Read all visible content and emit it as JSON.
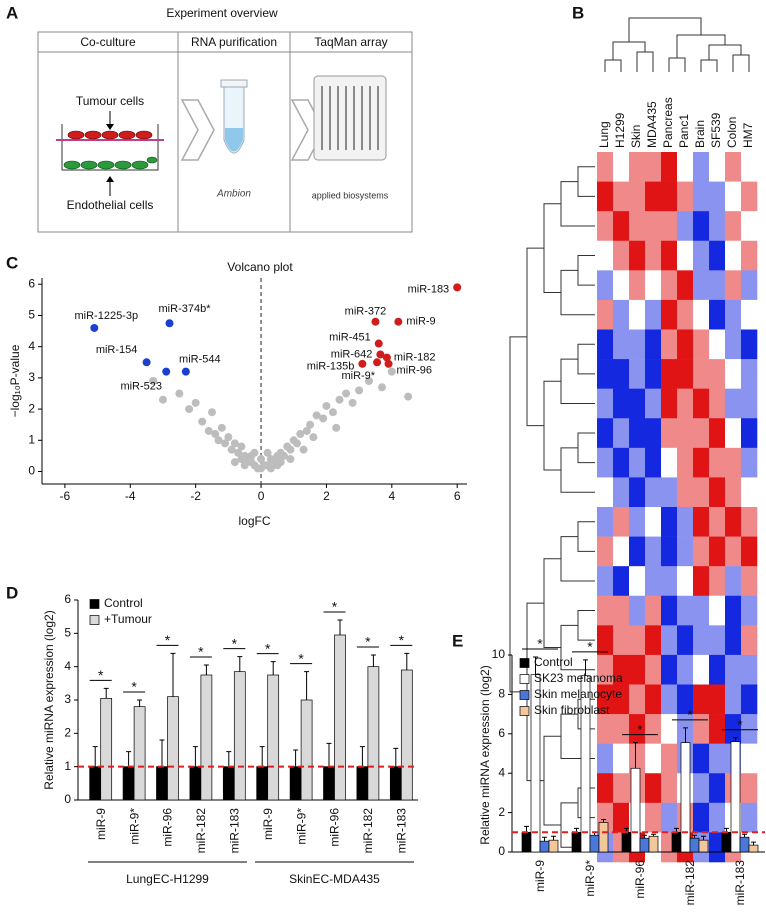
{
  "panel_labels": [
    "A",
    "B",
    "C",
    "D",
    "E"
  ],
  "overview": {
    "title": "Experiment overview",
    "steps": [
      "Co-culture",
      "RNA purification",
      "TaqMan array"
    ],
    "tumour_label": "Tumour cells",
    "endothelial_label": "Endothelial cells",
    "logo_1": "Ambion",
    "logo_2": "applied biosystems"
  },
  "chart_data": [
    {
      "type": "heatmap",
      "columns": [
        "Lung",
        "H1299",
        "Skin",
        "MDA435",
        "Pancreas",
        "Panc1",
        "Brain",
        "SF539",
        "Colon",
        "HM7"
      ],
      "vlim": [
        -2,
        2
      ],
      "colors": {
        "low": "#1428e0",
        "mid": "#ffffff",
        "high": "#e01414"
      },
      "values": [
        [
          1,
          0,
          1,
          1,
          2,
          0,
          -1,
          0,
          1,
          0
        ],
        [
          2,
          1,
          1,
          2,
          2,
          1,
          -1,
          -1,
          0,
          1
        ],
        [
          1,
          2,
          1,
          1,
          1,
          -1,
          -2,
          -1,
          1,
          0
        ],
        [
          0,
          1,
          2,
          1,
          2,
          0,
          -1,
          -2,
          0,
          1
        ],
        [
          -1,
          0,
          1,
          0,
          1,
          2,
          -1,
          -1,
          1,
          -1
        ],
        [
          1,
          -1,
          0,
          -1,
          2,
          1,
          0,
          -2,
          -1,
          0
        ],
        [
          -2,
          -1,
          -1,
          -2,
          1,
          2,
          1,
          0,
          -1,
          -2
        ],
        [
          -2,
          -2,
          -1,
          -2,
          2,
          2,
          1,
          1,
          0,
          -1
        ],
        [
          -1,
          -2,
          -2,
          -1,
          2,
          1,
          2,
          1,
          -1,
          -1
        ],
        [
          -2,
          -1,
          -2,
          -2,
          1,
          1,
          1,
          2,
          0,
          -2
        ],
        [
          -1,
          -2,
          -1,
          -2,
          0,
          1,
          2,
          1,
          1,
          -1
        ],
        [
          0,
          -1,
          -2,
          -1,
          -1,
          1,
          1,
          2,
          1,
          0
        ],
        [
          -1,
          1,
          -1,
          0,
          -2,
          -1,
          2,
          1,
          2,
          1
        ],
        [
          1,
          0,
          -2,
          -1,
          -2,
          -1,
          1,
          2,
          1,
          2
        ],
        [
          -1,
          -2,
          0,
          -1,
          -1,
          0,
          2,
          1,
          -1,
          1
        ],
        [
          1,
          1,
          -1,
          1,
          -2,
          -1,
          -1,
          0,
          -2,
          -1
        ],
        [
          2,
          1,
          1,
          2,
          -1,
          -2,
          -1,
          -1,
          -2,
          1
        ],
        [
          1,
          2,
          2,
          1,
          -2,
          -1,
          0,
          -2,
          -1,
          -1
        ],
        [
          2,
          2,
          1,
          2,
          -1,
          -2,
          2,
          2,
          -1,
          -2
        ],
        [
          1,
          1,
          2,
          1,
          0,
          -1,
          1,
          2,
          -2,
          -1
        ],
        [
          -1,
          0,
          1,
          0,
          1,
          -1,
          -2,
          -1,
          -1,
          0
        ],
        [
          2,
          1,
          1,
          2,
          1,
          0,
          -1,
          -2,
          1,
          1
        ],
        [
          1,
          2,
          0,
          1,
          -1,
          1,
          -2,
          -1,
          0,
          -1
        ],
        [
          -1,
          1,
          2,
          0,
          1,
          2,
          -1,
          -2,
          1,
          0
        ]
      ]
    },
    {
      "type": "scatter",
      "title": "Volcano plot",
      "xlabel": "logFC",
      "ylabel": "−log₁₀P-value",
      "xlim": [
        -6.7,
        6.3
      ],
      "ylim": [
        -0.4,
        6.2
      ],
      "xticks": [
        -6,
        -4,
        -2,
        0,
        2,
        4,
        6
      ],
      "yticks": [
        0,
        1,
        2,
        3,
        4,
        5,
        6
      ],
      "vline": 0,
      "series": [
        {
          "color": "#bdbdbd",
          "x": [
            -3.3,
            -3.0,
            -2.5,
            -2.2,
            -2.0,
            -1.8,
            -1.6,
            -1.5,
            -1.3,
            -1.2,
            -1.1,
            -1.0,
            -0.9,
            -0.8,
            -0.7,
            -0.6,
            -0.5,
            -0.4,
            -0.3,
            -0.2,
            -0.1,
            0,
            0.1,
            0.2,
            0.3,
            0.4,
            0.5,
            0.6,
            0.7,
            0.8,
            0.9,
            1.0,
            1.1,
            1.2,
            1.4,
            1.5,
            1.7,
            1.9,
            2.0,
            2.2,
            2.4,
            2.6,
            2.8,
            3.0,
            3.3,
            3.7,
            4.0,
            4.5,
            -0.8,
            -0.5,
            -0.3,
            0,
            0.3,
            0.6,
            0.9,
            -1.4,
            1.3,
            1.6,
            2.3,
            0.2,
            -0.2,
            -0.6,
            0.5
          ],
          "y": [
            2.9,
            2.3,
            2.5,
            2.0,
            2.2,
            1.6,
            1.3,
            1.9,
            1.0,
            1.4,
            0.9,
            1.1,
            0.7,
            0.9,
            0.6,
            0.8,
            0.5,
            0.4,
            0.3,
            0.2,
            0.1,
            0.1,
            0.2,
            0.2,
            0.4,
            0.3,
            0.5,
            0.6,
            0.5,
            0.8,
            0.7,
            1.0,
            0.9,
            1.2,
            1.3,
            1.5,
            1.8,
            1.7,
            2.1,
            1.9,
            2.3,
            2.5,
            2.2,
            2.6,
            2.9,
            2.7,
            3.2,
            2.4,
            0.3,
            0.2,
            0.5,
            0.4,
            0.1,
            0.3,
            0.4,
            1.2,
            0.7,
            1.1,
            1.4,
            0.6,
            0.6,
            0.4,
            0.2
          ]
        },
        {
          "color": "#1b3fd0",
          "x": [
            -5.1,
            -2.8,
            -3.5,
            -2.3,
            -2.9
          ],
          "y": [
            4.6,
            4.75,
            3.5,
            3.2,
            3.2
          ],
          "labels": [
            "miR-1225-3p",
            "miR-374b*",
            "miR-154",
            "miR-544",
            "miR-523"
          ]
        },
        {
          "color": "#d01c1c",
          "x": [
            6.0,
            3.5,
            4.2,
            3.6,
            3.65,
            3.85,
            3.1,
            3.55,
            3.9
          ],
          "y": [
            5.9,
            4.8,
            4.8,
            4.1,
            3.75,
            3.65,
            3.45,
            3.5,
            3.45
          ],
          "labels": [
            "miR-183",
            "miR-372",
            "miR-9",
            "miR-451",
            "miR-642",
            "miR-182",
            "miR-135b",
            "miR-9*",
            "miR-96"
          ]
        }
      ]
    },
    {
      "type": "bar",
      "ylabel": "Relative miRNA expression (log2)",
      "categories": [
        "miR-9",
        "miR-9*",
        "miR-96",
        "miR-182",
        "miR-183",
        "miR-9",
        "miR-9*",
        "miR-96",
        "miR-182",
        "miR-183"
      ],
      "group_labels": [
        "LungEC-H1299",
        "SkinEC-MDA435"
      ],
      "ylim": [
        0,
        6
      ],
      "yticks": [
        0,
        1,
        2,
        3,
        4,
        5,
        6
      ],
      "legend": "top-left",
      "ref_line": {
        "value": 1,
        "color": "#e02020"
      },
      "significance": [
        "*",
        "*",
        "*",
        "*",
        "*",
        "*",
        "*",
        "*",
        "*",
        "*"
      ],
      "series": [
        {
          "name": "Control",
          "color": "#000000",
          "values": [
            1,
            1,
            1,
            1,
            1,
            1,
            1,
            1,
            1,
            1
          ],
          "errors": [
            0.6,
            0.45,
            0.8,
            0.6,
            0.45,
            0.6,
            0.5,
            0.7,
            0.6,
            0.55
          ]
        },
        {
          "name": "+Tumour",
          "color": "#d9d9d9",
          "values": [
            3.05,
            2.8,
            3.1,
            3.75,
            3.85,
            3.75,
            3.0,
            4.95,
            4.0,
            3.9
          ],
          "errors": [
            0.3,
            0.2,
            1.3,
            0.3,
            0.45,
            0.4,
            0.85,
            0.45,
            0.35,
            0.5
          ]
        }
      ]
    },
    {
      "type": "bar",
      "ylabel": "Relative miRNA expression (log2)",
      "categories": [
        "miR-9",
        "miR-9*",
        "miR-96",
        "miR-182",
        "miR-183"
      ],
      "ylim": [
        0,
        10
      ],
      "yticks": [
        0,
        2,
        4,
        6,
        8,
        10
      ],
      "legend": "top-left",
      "ref_line": {
        "value": 1,
        "color": "#e02020"
      },
      "significance": [
        "*",
        "*",
        "*",
        "*",
        "*"
      ],
      "series": [
        {
          "name": "Control",
          "color": "#000000",
          "values": [
            1.0,
            1.0,
            1.0,
            1.0,
            1.0
          ],
          "errors": [
            0.3,
            0.2,
            0.2,
            0.2,
            0.2
          ]
        },
        {
          "name": "SK23 melanoma",
          "color": "#ffffff",
          "values": [
            9.0,
            8.95,
            4.25,
            5.55,
            5.6
          ],
          "errors": [
            0.9,
            0.8,
            1.3,
            0.75,
            0.2
          ]
        },
        {
          "name": "Skin melanocyte",
          "color": "#4a78d8",
          "values": [
            0.55,
            0.85,
            0.7,
            0.7,
            0.75
          ],
          "errors": [
            0.2,
            0.15,
            0.15,
            0.15,
            0.15
          ]
        },
        {
          "name": "Skin fibroblast",
          "color": "#f2c79a",
          "values": [
            0.6,
            1.5,
            0.8,
            0.6,
            0.35
          ],
          "errors": [
            0.2,
            0.15,
            0.1,
            0.2,
            0.15
          ]
        }
      ]
    }
  ]
}
